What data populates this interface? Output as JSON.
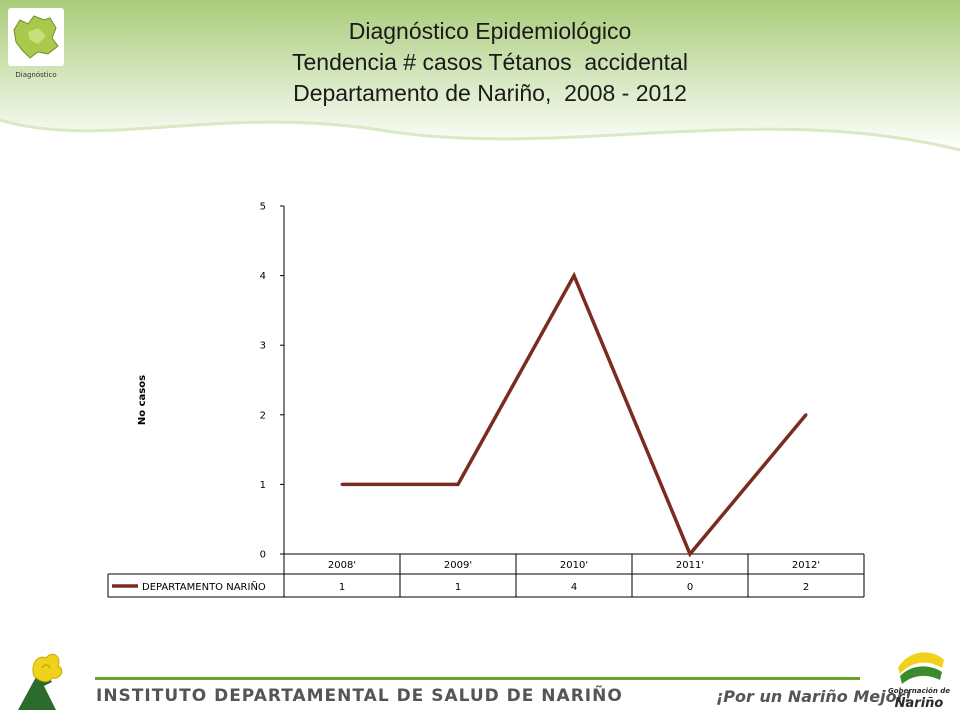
{
  "header": {
    "corner_caption": "Diagnóstico",
    "title_lines": [
      "Diagnóstico Epidemiológico",
      "Tendencia # casos Tétanos  accidental",
      "Departamento de Nariño,  2008 - 2012"
    ]
  },
  "chart_data": {
    "type": "line",
    "categories": [
      "2008'",
      "2009'",
      "2010'",
      "2011'",
      "2012'"
    ],
    "series": [
      {
        "name": "DEPARTAMENTO NARIÑO",
        "values": [
          1,
          1,
          4,
          0,
          2
        ],
        "color": "#7b2c20"
      }
    ],
    "ylabel": "No casos",
    "ylim": [
      0,
      5
    ],
    "yticks": [
      0,
      1,
      2,
      3,
      4,
      5
    ],
    "data_table": true,
    "grid": false,
    "legend": "data-table"
  },
  "footer": {
    "institute": "INSTITUTO DEPARTAMENTAL DE SALUD DE NARIÑO",
    "slogan": "¡Por un Nariño Mejor!",
    "gob_small": "Gobernación de",
    "gob_big": "Nariño"
  },
  "colors": {
    "header_green": "#a9cc7a",
    "footer_line": "#6aa32b",
    "series_line": "#7b2c20"
  }
}
